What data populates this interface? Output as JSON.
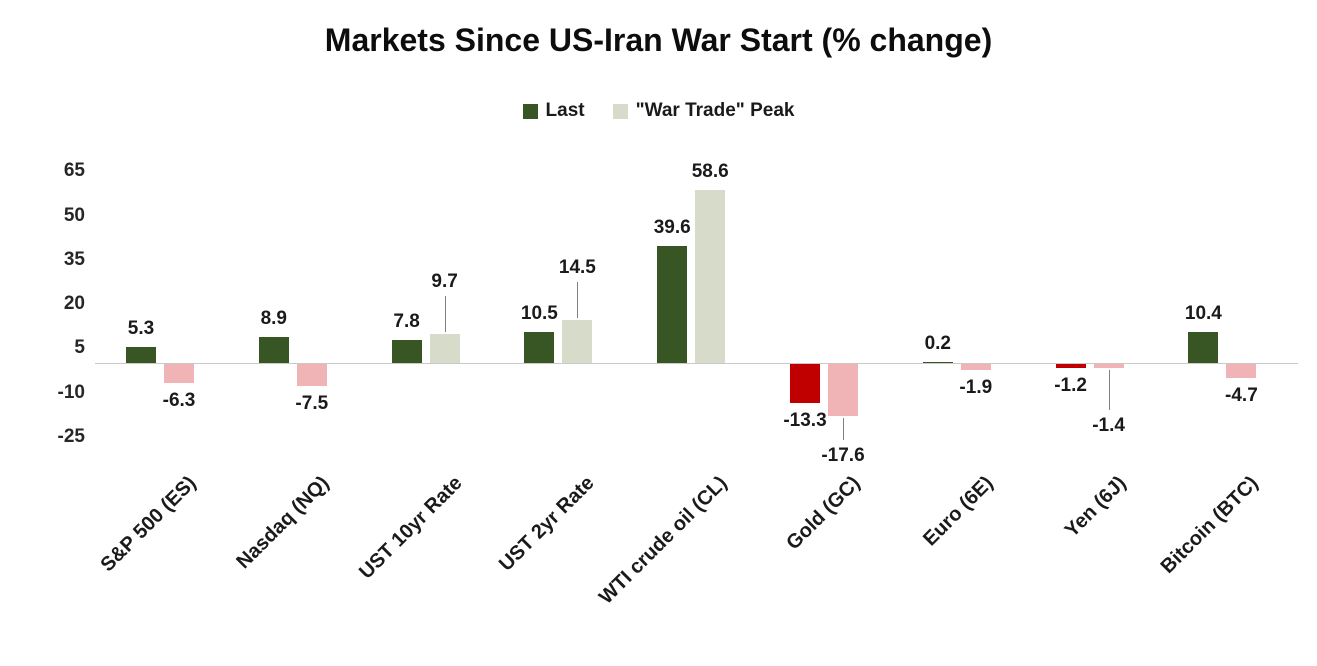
{
  "chart_data": {
    "type": "bar",
    "title": "Markets Since US-Iran War Start (% change)",
    "categories": [
      "S&P 500 (ES)",
      "Nasdaq (NQ)",
      "UST 10yr Rate",
      "UST 2yr Rate",
      "WTI crude oil (CL)",
      "Gold (GC)",
      "Euro (6E)",
      "Yen (6J)",
      "Bitcoin (BTC)"
    ],
    "series": [
      {
        "name": "Last",
        "values": [
          5.3,
          8.9,
          7.8,
          10.5,
          39.6,
          -13.3,
          0.2,
          -1.2,
          10.4
        ],
        "color_positive": "#375623",
        "color_negative": "#c00000"
      },
      {
        "name": "\"War Trade\" Peak",
        "values": [
          -6.3,
          -7.5,
          9.7,
          14.5,
          58.6,
          -17.6,
          -1.9,
          -1.4,
          -4.7
        ],
        "color_positive": "#d6dbca",
        "color_negative": "#f0b4b6"
      }
    ],
    "yticks": [
      65,
      50,
      35,
      20,
      5,
      -10,
      -25
    ],
    "ylim": [
      -25,
      65
    ],
    "grid": false,
    "legend_position": "top",
    "axis_color": "#c9c9c9",
    "leader_color": "#808080",
    "label_overrides": [
      {
        "series": 1,
        "index": 2,
        "offset": 34,
        "leader": true
      },
      {
        "series": 1,
        "index": 3,
        "offset": 34,
        "leader": true
      },
      {
        "series": 1,
        "index": 5,
        "offset": 22,
        "leader": true
      },
      {
        "series": 1,
        "index": 7,
        "offset": 40,
        "leader": true
      }
    ]
  }
}
